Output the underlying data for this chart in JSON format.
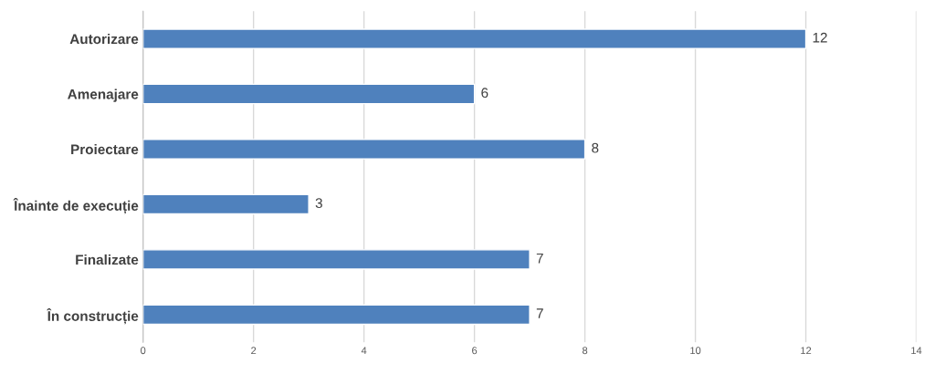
{
  "chart_data": {
    "type": "bar",
    "orientation": "horizontal",
    "categories": [
      "Autorizare",
      "Amenajare",
      "Proiectare",
      "Înainte de execuție",
      "Finalizate",
      "În construcție"
    ],
    "values": [
      12,
      6,
      8,
      3,
      7,
      7
    ],
    "color": "#4f81bd",
    "xlim": [
      0,
      14
    ],
    "xticks": [
      0,
      2,
      4,
      6,
      8,
      10,
      12,
      14
    ],
    "grid": "x",
    "data_labels": true
  }
}
